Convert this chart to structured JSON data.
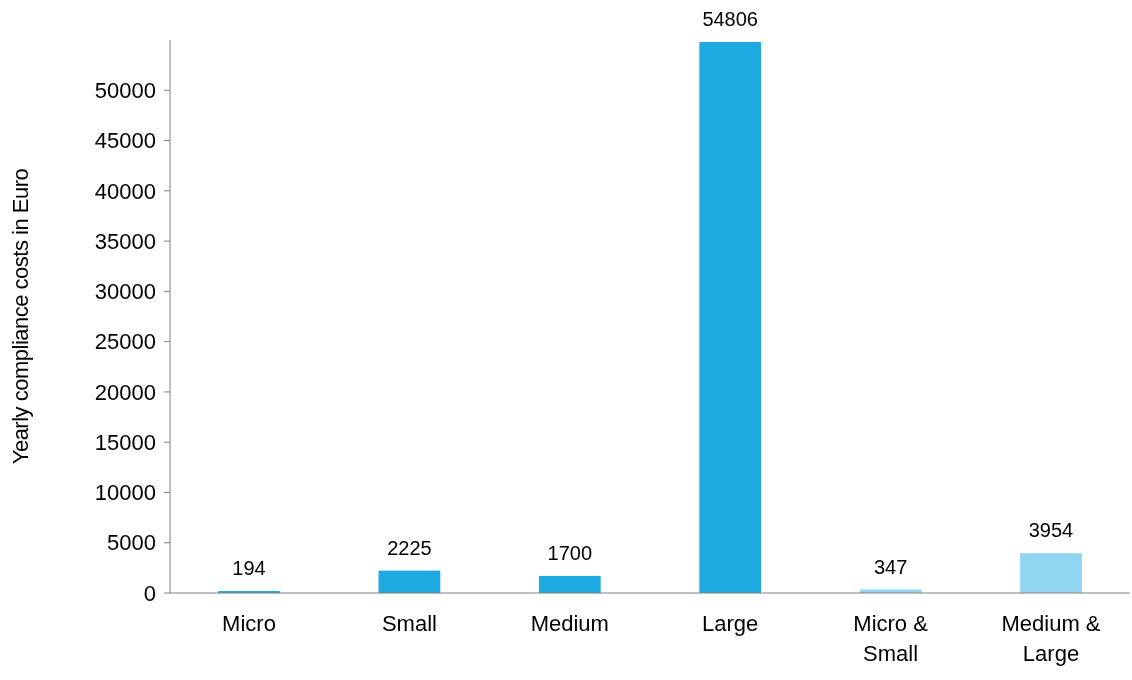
{
  "chart_data": {
    "type": "bar",
    "ylabel": "Yearly compliance costs in Euro",
    "categories": [
      "Micro",
      "Small",
      "Medium",
      "Large",
      "Micro & Small",
      "Medium & Large"
    ],
    "values": [
      194,
      2225,
      1700,
      54806,
      347,
      3954
    ],
    "colors": [
      "#1fa9e1",
      "#1fa9e1",
      "#1fa9e1",
      "#1fa9e1",
      "#8fd4f0",
      "#8fd4f0"
    ],
    "ylim": [
      0,
      55000
    ],
    "yticks": [
      0,
      5000,
      10000,
      15000,
      20000,
      25000,
      30000,
      35000,
      40000,
      45000,
      50000
    ],
    "grid": false,
    "data_labels": true
  }
}
